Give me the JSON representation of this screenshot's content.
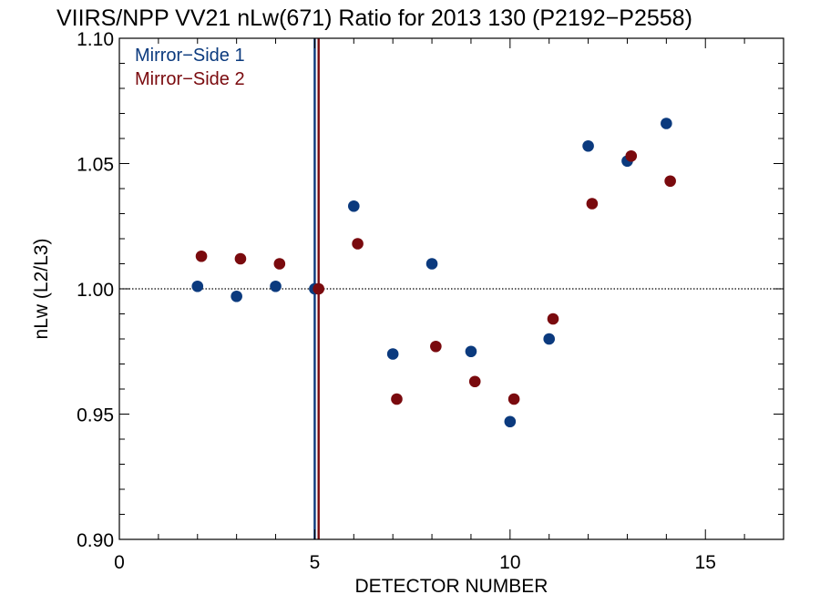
{
  "chart_data": {
    "type": "scatter",
    "title": "VIIRS/NPP VV21 nLw(671) Ratio for 2013 130 (P2192−P2558)",
    "xlabel": "DETECTOR NUMBER",
    "ylabel": "nLw (L2/L3)",
    "xlim": [
      0,
      17
    ],
    "ylim": [
      0.9,
      1.1
    ],
    "x_ticks": [
      {
        "value": 0,
        "label": "0"
      },
      {
        "value": 5,
        "label": "5"
      },
      {
        "value": 10,
        "label": "10"
      },
      {
        "value": 15,
        "label": "15"
      }
    ],
    "y_ticks": [
      {
        "value": 0.9,
        "label": "0.90"
      },
      {
        "value": 0.95,
        "label": "0.95"
      },
      {
        "value": 1.0,
        "label": "1.00"
      },
      {
        "value": 1.05,
        "label": "1.05"
      },
      {
        "value": 1.1,
        "label": "1.10"
      }
    ],
    "x_minor_step": 1,
    "y_minor_step": 0.01,
    "reference_line_y": 1.0,
    "legend_position": "top-left",
    "series": [
      {
        "name": "Mirror−Side 1",
        "color": "#0b3a7e",
        "marker_line_x": 5.0,
        "points": [
          {
            "x": 2,
            "y": 1.001
          },
          {
            "x": 3,
            "y": 0.997
          },
          {
            "x": 4,
            "y": 1.001
          },
          {
            "x": 5,
            "y": 1.0
          },
          {
            "x": 6,
            "y": 1.033
          },
          {
            "x": 7,
            "y": 0.974
          },
          {
            "x": 8,
            "y": 1.01
          },
          {
            "x": 9,
            "y": 0.975
          },
          {
            "x": 10,
            "y": 0.947
          },
          {
            "x": 11,
            "y": 0.98
          },
          {
            "x": 12,
            "y": 1.057
          },
          {
            "x": 13,
            "y": 1.051
          },
          {
            "x": 14,
            "y": 1.066
          }
        ]
      },
      {
        "name": "Mirror−Side 2",
        "color": "#7a0a0e",
        "marker_line_x": 5.1,
        "points": [
          {
            "x": 2.1,
            "y": 1.013
          },
          {
            "x": 3.1,
            "y": 1.012
          },
          {
            "x": 4.1,
            "y": 1.01
          },
          {
            "x": 5.1,
            "y": 1.0
          },
          {
            "x": 6.1,
            "y": 1.018
          },
          {
            "x": 7.1,
            "y": 0.956
          },
          {
            "x": 8.1,
            "y": 0.977
          },
          {
            "x": 9.1,
            "y": 0.963
          },
          {
            "x": 10.1,
            "y": 0.956
          },
          {
            "x": 11.1,
            "y": 0.988
          },
          {
            "x": 12.1,
            "y": 1.034
          },
          {
            "x": 13.1,
            "y": 1.053
          },
          {
            "x": 14.1,
            "y": 1.043
          }
        ]
      }
    ]
  }
}
